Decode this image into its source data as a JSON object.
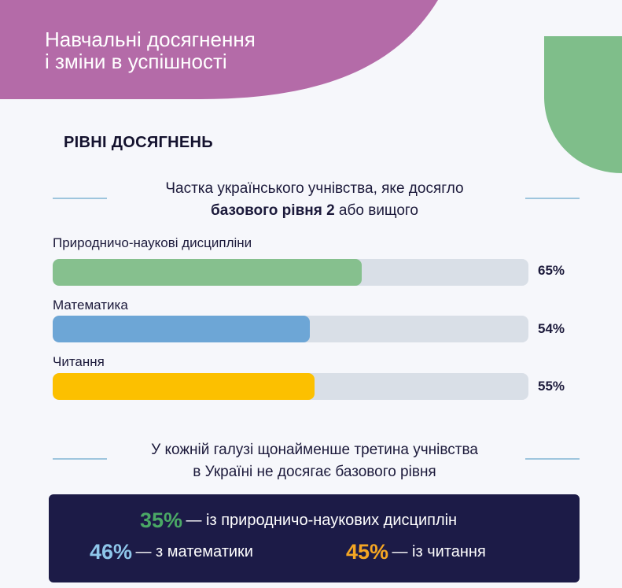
{
  "header": {
    "title_line1": "Навчальні досягнення",
    "title_line2": "і зміни в успішності"
  },
  "colors": {
    "header_bg": "#b46ba8",
    "accent_green": "#7fbe8a",
    "science": "#86c08e",
    "math": "#6da6d6",
    "reading": "#fcc000",
    "track": "#d9dfe7",
    "panel_bg": "#1c1b47",
    "green_text": "#4aa865",
    "blue_text": "#8ec6ea",
    "orange_text": "#f5a623"
  },
  "section_title": "РІВНІ ДОСЯГНЕНЬ",
  "subtitle": {
    "line1": "Частка українського учнівства, яке досягло",
    "line2_bold": "базового рівня 2",
    "line2_rest": " або вищого"
  },
  "chart_data": {
    "type": "bar",
    "orientation": "horizontal",
    "unit": "%",
    "xlim": [
      0,
      100
    ],
    "categories": [
      "Природничо-наукові дисципліни",
      "Математика",
      "Читання"
    ],
    "values": [
      65,
      54,
      55
    ],
    "value_labels": [
      "65%",
      "54%",
      "55%"
    ],
    "colors": [
      "#86c08e",
      "#6da6d6",
      "#fcc000"
    ]
  },
  "note": {
    "line1": "У кожній галузі щонайменше третина учнівства",
    "line2": "в Україні не досягає базового рівня"
  },
  "panel": {
    "science": {
      "value": "35%",
      "text": "— із природничо-наукових дисциплін"
    },
    "math": {
      "value": "46%",
      "text": "— з математики"
    },
    "reading": {
      "value": "45%",
      "text": "— із читання"
    }
  }
}
